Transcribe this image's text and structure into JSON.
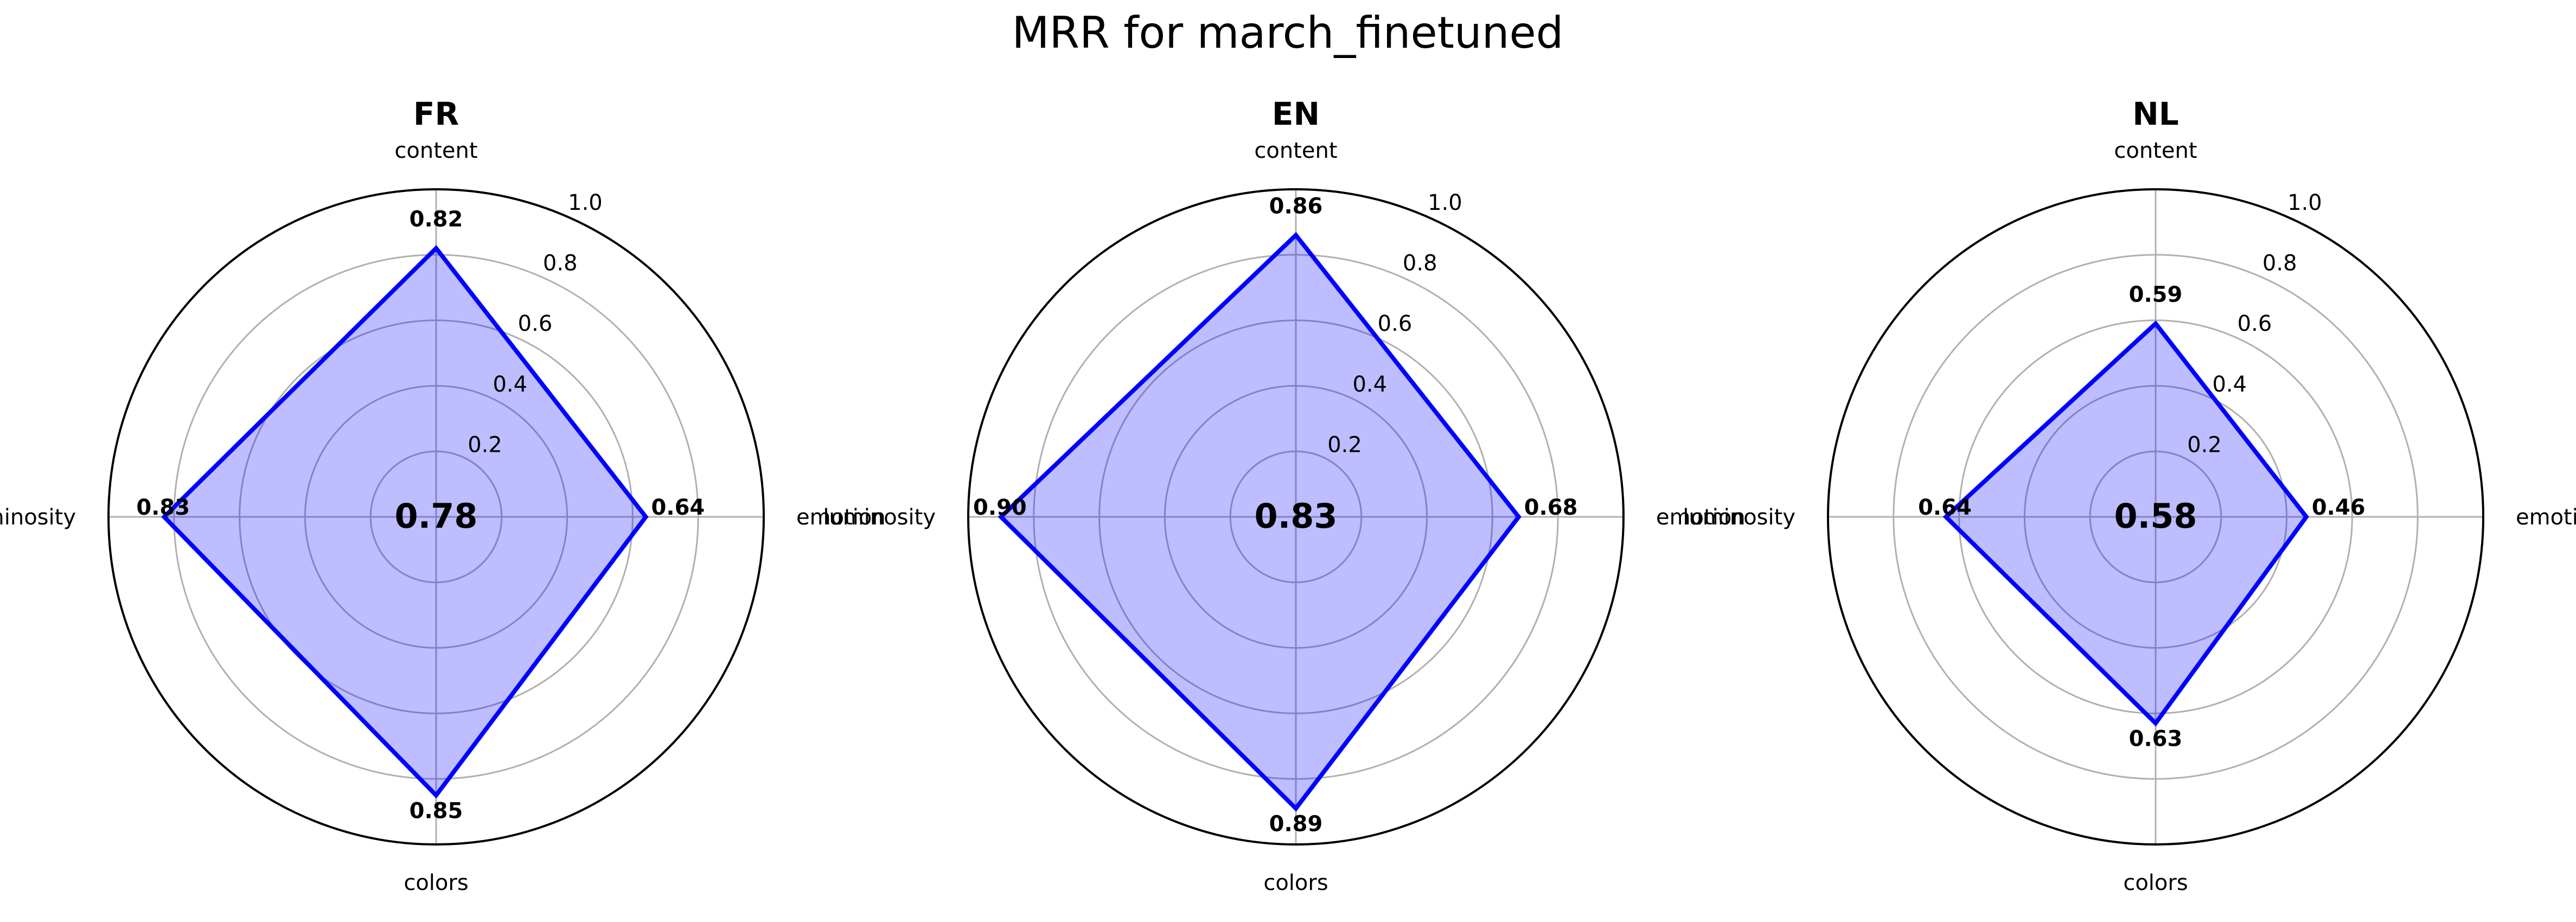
{
  "title": "MRR for march_finetuned",
  "chart_data": [
    {
      "type": "radar",
      "title": "FR",
      "categories": [
        "content",
        "emotion",
        "colors",
        "luminosity"
      ],
      "values": [
        0.82,
        0.64,
        0.85,
        0.83
      ],
      "value_labels": [
        "0.82",
        "0.64",
        "0.85",
        "0.83"
      ],
      "center_value": "0.78",
      "rlim": [
        0,
        1.0
      ],
      "rticks": [
        "0.2",
        "0.4",
        "0.6",
        "0.8",
        "1.0"
      ],
      "color": "#0000ff"
    },
    {
      "type": "radar",
      "title": "EN",
      "categories": [
        "content",
        "emotion",
        "colors",
        "luminosity"
      ],
      "values": [
        0.86,
        0.68,
        0.89,
        0.9
      ],
      "value_labels": [
        "0.86",
        "0.68",
        "0.89",
        "0.90"
      ],
      "center_value": "0.83",
      "rlim": [
        0,
        1.0
      ],
      "rticks": [
        "0.2",
        "0.4",
        "0.6",
        "0.8",
        "1.0"
      ],
      "color": "#0000ff"
    },
    {
      "type": "radar",
      "title": "NL",
      "categories": [
        "content",
        "emotion",
        "colors",
        "luminosity"
      ],
      "values": [
        0.59,
        0.46,
        0.63,
        0.64
      ],
      "value_labels": [
        "0.59",
        "0.46",
        "0.63",
        "0.64"
      ],
      "center_value": "0.58",
      "rlim": [
        0,
        1.0
      ],
      "rticks": [
        "0.2",
        "0.4",
        "0.6",
        "0.8",
        "1.0"
      ],
      "color": "#0000ff"
    }
  ]
}
